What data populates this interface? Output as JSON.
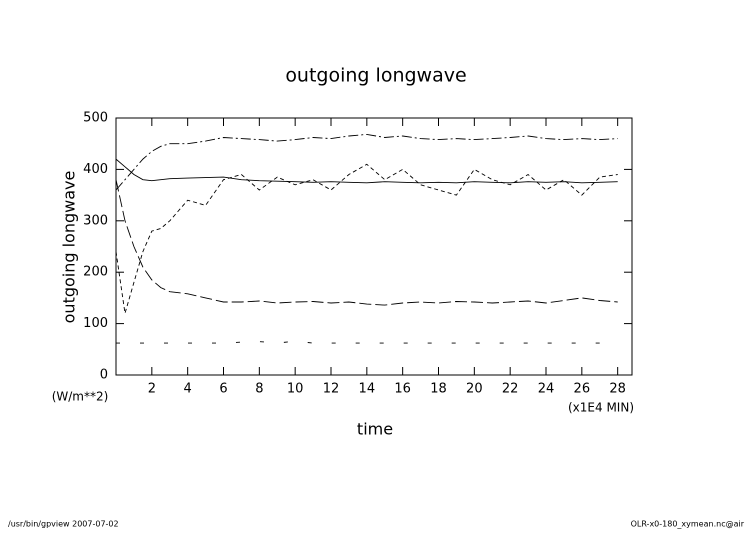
{
  "chart_data": {
    "type": "line",
    "title": "outgoing longwave",
    "y_label": "outgoing longwave",
    "x_label": "time",
    "y_unit": "(W/m**2)",
    "x_unit": "(x1E4 MIN)",
    "footer_left": "/usr/bin/gpview  2007-07-02",
    "footer_right": "OLR-x0-180_xymean.nc@air",
    "x": [
      0,
      0.5,
      1,
      1.5,
      2,
      2.5,
      3,
      4,
      5,
      6,
      7,
      8,
      9,
      10,
      11,
      12,
      13,
      14,
      15,
      16,
      17,
      18,
      19,
      20,
      21,
      22,
      23,
      24,
      25,
      26,
      27,
      28
    ],
    "xlim": [
      0,
      28.8
    ],
    "ylim": [
      0,
      500
    ],
    "xticks": [
      2,
      4,
      6,
      8,
      10,
      12,
      14,
      16,
      18,
      20,
      22,
      24,
      26,
      28
    ],
    "yticks": [
      0,
      100,
      200,
      300,
      400,
      500
    ],
    "series": [
      {
        "color": "#000000",
        "dash": "solid",
        "values": [
          420,
          405,
          390,
          380,
          378,
          380,
          382,
          383,
          384,
          385,
          380,
          378,
          377,
          376,
          375,
          376,
          375,
          374,
          376,
          375,
          374,
          375,
          374,
          376,
          375,
          374,
          376,
          375,
          376,
          374,
          375,
          376
        ]
      },
      {
        "color": "#000000",
        "dash": "dash-dot",
        "values": [
          360,
          380,
          400,
          420,
          435,
          445,
          450,
          450,
          455,
          462,
          460,
          458,
          455,
          458,
          462,
          460,
          465,
          468,
          462,
          465,
          460,
          458,
          460,
          458,
          460,
          462,
          465,
          460,
          458,
          460,
          458,
          460
        ]
      },
      {
        "color": "#000000",
        "dash": "long-dash",
        "values": [
          380,
          300,
          250,
          210,
          185,
          170,
          162,
          158,
          150,
          142,
          142,
          144,
          140,
          142,
          143,
          140,
          142,
          138,
          136,
          140,
          142,
          140,
          143,
          142,
          140,
          142,
          144,
          140,
          145,
          150,
          145,
          142
        ]
      },
      {
        "color": "#000000",
        "dash": "dashed",
        "values": [
          240,
          120,
          180,
          240,
          280,
          285,
          300,
          340,
          330,
          380,
          390,
          360,
          385,
          370,
          380,
          360,
          390,
          410,
          380,
          400,
          370,
          360,
          350,
          400,
          380,
          370,
          390,
          360,
          380,
          350,
          385,
          390
        ]
      },
      {
        "color": "#000000",
        "dash": "sparse",
        "values": [
          62,
          62,
          62,
          62,
          62,
          62,
          62,
          62,
          62,
          62,
          64,
          65,
          62,
          66,
          62,
          62,
          62,
          62,
          62,
          62,
          62,
          62,
          62,
          62,
          62,
          62,
          62,
          62,
          62,
          62,
          62,
          62
        ]
      }
    ]
  }
}
